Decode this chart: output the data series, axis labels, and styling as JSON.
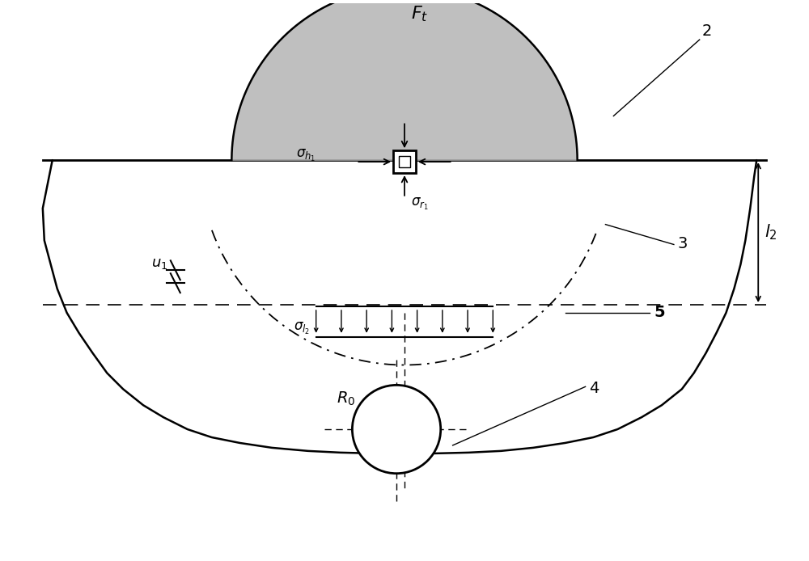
{
  "fig_width": 10.0,
  "fig_height": 6.94,
  "dpi": 100,
  "bg_color": "#ffffff",
  "gray_fill": "#aaaaaa",
  "label_Ft": "$F_t$",
  "label_2": "2",
  "label_3": "3",
  "label_4": "4",
  "label_5": "5",
  "label_u1": "$u_1$",
  "label_l2": "$l_2$",
  "label_sigma_h": "$\\sigma_{h_1}$",
  "label_sigma_r": "$\\sigma_{r_1}$",
  "label_sigma_l2": "$\\sigma_{l_2}$",
  "label_R0": "$R_0$"
}
